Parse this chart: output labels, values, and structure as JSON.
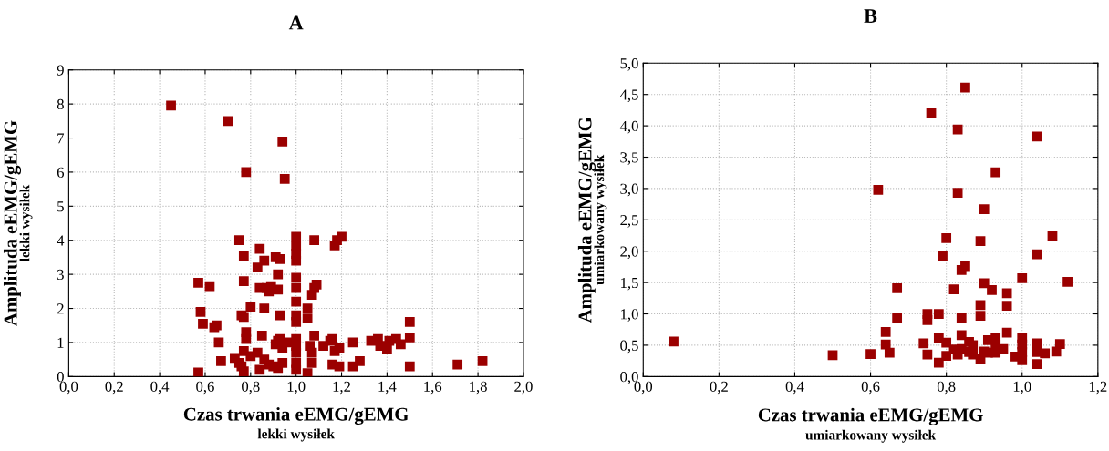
{
  "chart_data": [
    {
      "type": "scatter",
      "title": "A",
      "xlabel": "Czas trwania eEMG/gEMG\nlekki wysiłek",
      "ylabel": "Amplituda eEMG/gEMG\nlekki wysiłek",
      "xlim": [
        0,
        2
      ],
      "ylim": [
        0,
        9
      ],
      "xticks": [
        {
          "value": 0,
          "label": "0,0"
        },
        {
          "value": 0.2,
          "label": "0,2"
        },
        {
          "value": 0.4,
          "label": "0,4"
        },
        {
          "value": 0.6,
          "label": "0,6"
        },
        {
          "value": 0.8,
          "label": "0,8"
        },
        {
          "value": 1.0,
          "label": "1,0"
        },
        {
          "value": 1.2,
          "label": "1,2"
        },
        {
          "value": 1.4,
          "label": "1,4"
        },
        {
          "value": 1.6,
          "label": "1,6"
        },
        {
          "value": 1.8,
          "label": "1,8"
        },
        {
          "value": 2.0,
          "label": "2,0"
        }
      ],
      "yticks": [
        0,
        1,
        2,
        3,
        4,
        5,
        6,
        7,
        8,
        9
      ],
      "grid": true,
      "marker": "square",
      "series": [
        {
          "color": "#9b0000",
          "x": [
            0.45,
            0.7,
            0.78,
            0.94,
            0.95,
            0.75,
            0.77,
            0.77,
            0.57,
            0.62,
            0.58,
            0.59,
            0.64,
            0.65,
            0.66,
            0.67,
            0.57,
            0.76,
            0.77,
            0.8,
            0.84,
            0.83,
            0.86,
            0.84,
            0.86,
            0.85,
            0.78,
            0.78,
            0.77,
            0.73,
            0.75,
            0.76,
            0.77,
            0.8,
            0.83,
            0.84,
            0.86,
            0.88,
            0.87,
            0.88,
            0.89,
            0.91,
            0.93,
            0.92,
            0.92,
            0.93,
            0.91,
            0.92,
            0.93,
            0.94,
            0.9,
            0.92,
            0.94,
            0.96,
            1.0,
            1.0,
            1.0,
            1.0,
            1.0,
            1.0,
            1.0,
            1.0,
            1.0,
            1.0,
            1.0,
            1.0,
            1.0,
            1.0,
            1.08,
            1.17,
            1.18,
            1.2,
            1.05,
            1.05,
            1.07,
            1.08,
            1.09,
            1.08,
            1.06,
            1.07,
            1.07,
            1.05,
            1.12,
            1.15,
            1.16,
            1.17,
            1.19,
            1.16,
            1.19,
            1.25,
            1.25,
            1.28,
            1.33,
            1.36,
            1.37,
            1.4,
            1.41,
            1.44,
            1.46,
            1.5,
            1.5,
            1.5,
            1.71,
            1.82
          ],
          "values": [
            7.95,
            7.5,
            6.0,
            6.9,
            5.8,
            4.0,
            3.55,
            2.8,
            2.75,
            2.65,
            1.9,
            1.55,
            1.45,
            1.5,
            1.0,
            0.45,
            0.12,
            1.8,
            1.75,
            2.05,
            3.75,
            3.2,
            3.4,
            2.6,
            2.0,
            1.2,
            1.3,
            1.1,
            0.75,
            0.55,
            0.4,
            0.3,
            0.15,
            0.6,
            0.7,
            0.2,
            0.5,
            0.35,
            2.6,
            2.5,
            2.65,
            3.5,
            3.45,
            3.0,
            2.55,
            1.8,
            0.95,
            1.05,
            1.1,
            0.85,
            0.3,
            0.25,
            0.4,
            1.0,
            4.1,
            3.85,
            3.6,
            3.4,
            2.9,
            2.6,
            2.2,
            1.8,
            1.6,
            1.1,
            0.9,
            0.7,
            0.4,
            0.2,
            4.0,
            3.85,
            4.0,
            4.1,
            2.0,
            1.7,
            2.4,
            2.6,
            2.7,
            1.2,
            0.9,
            0.7,
            0.4,
            0.1,
            0.9,
            1.05,
            1.1,
            0.75,
            0.85,
            0.35,
            0.3,
            1.0,
            0.3,
            0.45,
            1.05,
            1.1,
            0.9,
            0.8,
            1.05,
            1.1,
            0.95,
            1.6,
            1.15,
            0.3,
            0.35,
            0.45
          ]
        }
      ]
    },
    {
      "type": "scatter",
      "title": "B",
      "xlabel": "Czas trwania eEMG/gEMG\numiarkowany wysiłek",
      "ylabel": "Amplituda eEMG/gEMG\numiarkowany wysiłek",
      "xlim": [
        0,
        1.2
      ],
      "ylim": [
        0,
        5
      ],
      "xticks": [
        {
          "value": 0,
          "label": "0,0"
        },
        {
          "value": 0.2,
          "label": "0,2"
        },
        {
          "value": 0.4,
          "label": "0,4"
        },
        {
          "value": 0.6,
          "label": "0,6"
        },
        {
          "value": 0.8,
          "label": "0,8"
        },
        {
          "value": 1.0,
          "label": "1,0"
        },
        {
          "value": 1.2,
          "label": "1,2"
        }
      ],
      "yticks": [
        {
          "value": 0,
          "label": "0,0"
        },
        {
          "value": 0.5,
          "label": "0,5"
        },
        {
          "value": 1.0,
          "label": "1,0"
        },
        {
          "value": 1.5,
          "label": "1,5"
        },
        {
          "value": 2.0,
          "label": "2,0"
        },
        {
          "value": 2.5,
          "label": "2,5"
        },
        {
          "value": 3.0,
          "label": "3,0"
        },
        {
          "value": 3.5,
          "label": "3,5"
        },
        {
          "value": 4.0,
          "label": "4,0"
        },
        {
          "value": 4.5,
          "label": "4,5"
        },
        {
          "value": 5.0,
          "label": "5,0"
        }
      ],
      "grid": true,
      "marker": "square",
      "series": [
        {
          "color": "#9b0000",
          "x": [
            0.08,
            0.5,
            0.85,
            0.76,
            0.83,
            1.04,
            0.93,
            0.62,
            0.83,
            0.9,
            0.8,
            0.89,
            1.08,
            0.79,
            1.04,
            0.85,
            0.84,
            1.0,
            1.12,
            0.67,
            0.82,
            0.9,
            0.92,
            0.96,
            0.96,
            0.89,
            0.89,
            0.78,
            0.75,
            0.75,
            0.84,
            0.67,
            0.64,
            0.64,
            0.65,
            0.6,
            0.74,
            0.75,
            0.78,
            0.78,
            0.8,
            0.8,
            0.82,
            0.83,
            0.84,
            0.84,
            0.86,
            0.86,
            0.87,
            0.87,
            0.89,
            0.9,
            0.91,
            0.91,
            0.93,
            0.93,
            0.93,
            0.95,
            0.96,
            0.98,
            1.0,
            1.0,
            1.0,
            1.0,
            1.04,
            1.04,
            1.04,
            1.06,
            1.09,
            1.1
          ],
          "values": [
            0.56,
            0.34,
            4.61,
            4.21,
            3.94,
            3.83,
            3.26,
            2.98,
            2.93,
            2.67,
            2.21,
            2.16,
            2.24,
            1.93,
            1.95,
            1.76,
            1.7,
            1.57,
            1.51,
            1.41,
            1.39,
            1.49,
            1.38,
            1.33,
            1.13,
            1.14,
            0.97,
            1.0,
            1.0,
            0.9,
            0.93,
            0.93,
            0.71,
            0.51,
            0.38,
            0.36,
            0.53,
            0.35,
            0.22,
            0.62,
            0.54,
            0.33,
            0.43,
            0.35,
            0.66,
            0.44,
            0.55,
            0.39,
            0.5,
            0.35,
            0.28,
            0.4,
            0.58,
            0.38,
            0.62,
            0.51,
            0.38,
            0.44,
            0.7,
            0.32,
            0.61,
            0.51,
            0.39,
            0.26,
            0.53,
            0.39,
            0.2,
            0.37,
            0.4,
            0.52
          ]
        }
      ]
    }
  ]
}
